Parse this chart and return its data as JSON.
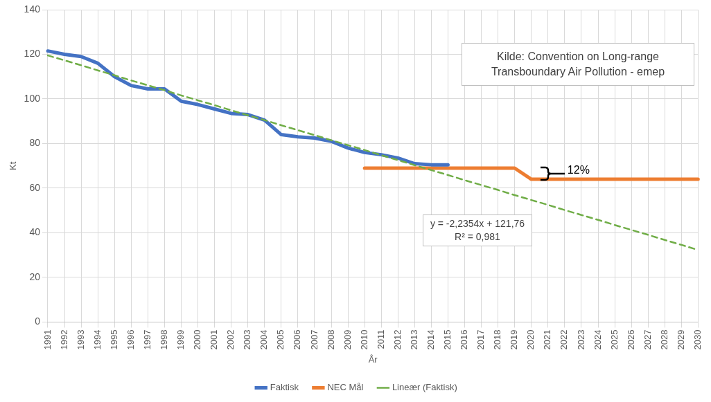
{
  "chart_data": {
    "type": "line",
    "xlabel": "År",
    "ylabel": "Kt",
    "categories": [
      "1991",
      "1992",
      "1993",
      "1994",
      "1995",
      "1996",
      "1997",
      "1998",
      "1999",
      "2000",
      "2001",
      "2002",
      "2003",
      "2004",
      "2005",
      "2006",
      "2007",
      "2008",
      "2009",
      "2010",
      "2011",
      "2012",
      "2013",
      "2014",
      "2015",
      "2016",
      "2017",
      "2018",
      "2019",
      "2020",
      "2021",
      "2022",
      "2023",
      "2024",
      "2025",
      "2026",
      "2027",
      "2028",
      "2029",
      "2030"
    ],
    "series": [
      {
        "name": "Faktisk",
        "color": "#4472c4",
        "values": [
          121.5,
          120,
          119,
          116,
          110,
          106,
          104.5,
          104.5,
          99,
          97.5,
          95.5,
          93.5,
          93,
          90.5,
          84,
          83,
          82.5,
          81,
          78,
          76,
          75,
          73.5,
          71,
          70.5,
          70.5,
          null,
          null,
          null,
          null,
          null,
          null,
          null,
          null,
          null,
          null,
          null,
          null,
          null,
          null,
          null
        ]
      },
      {
        "name": "NEC Mål",
        "color": "#ed7d31",
        "values": [
          null,
          null,
          null,
          null,
          null,
          null,
          null,
          null,
          null,
          null,
          null,
          null,
          null,
          null,
          null,
          null,
          null,
          null,
          null,
          69,
          69,
          69,
          69,
          69,
          69,
          69,
          69,
          69,
          69,
          64,
          64,
          64,
          64,
          64,
          64,
          64,
          64,
          64,
          64,
          64
        ]
      },
      {
        "name": "Lineær (Faktisk)",
        "color": "#70ad47",
        "line_style": "dashed",
        "values": [
          119.5,
          117.3,
          115.1,
          112.8,
          110.6,
          108.3,
          106.1,
          103.9,
          101.6,
          99.4,
          97.2,
          94.9,
          92.7,
          90.5,
          88.2,
          86.0,
          83.8,
          81.5,
          79.3,
          77.1,
          74.8,
          72.6,
          70.3,
          68.1,
          65.9,
          63.6,
          61.4,
          59.2,
          56.9,
          54.7,
          52.5,
          50.2,
          48.0,
          45.8,
          43.5,
          41.3,
          39.1,
          36.8,
          34.6,
          32.3
        ]
      }
    ],
    "ylim": [
      0,
      140
    ],
    "yticks": [
      0,
      20,
      40,
      60,
      80,
      100,
      120,
      140
    ],
    "grid": true,
    "legend": "bottom",
    "marker": "none",
    "annotations": [
      "Kilde: Convention on Long-range Transboundary Air Pollution - emep",
      "y = -2,2354x + 121,76",
      "R² = 0,981",
      "12%"
    ]
  }
}
